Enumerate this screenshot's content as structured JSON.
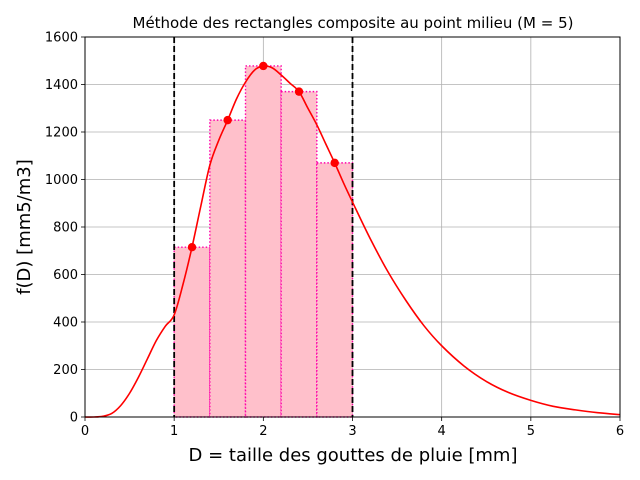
{
  "chart_data": {
    "type": "line",
    "title": "Méthode des rectangles composite au point milieu (M = 5)",
    "xlabel": "D = taille des gouttes de pluie [mm]",
    "ylabel": "f(D) [mm5/m3]",
    "xlim": [
      0,
      6
    ],
    "ylim": [
      0,
      1600
    ],
    "xticks": [
      "0",
      "1",
      "2",
      "3",
      "4",
      "5",
      "6"
    ],
    "yticks": [
      "0",
      "200",
      "400",
      "600",
      "800",
      "1000",
      "1200",
      "1400",
      "1600"
    ],
    "grid": true,
    "integration_bounds": [
      1,
      3
    ],
    "curve": {
      "color": "#ff0000",
      "x": [
        0,
        0.1,
        0.2,
        0.3,
        0.4,
        0.5,
        0.6,
        0.7,
        0.8,
        0.9,
        1.0,
        1.1,
        1.2,
        1.3,
        1.4,
        1.5,
        1.6,
        1.7,
        1.8,
        1.9,
        2.0,
        2.1,
        2.2,
        2.3,
        2.4,
        2.5,
        2.6,
        2.7,
        2.8,
        2.9,
        3.0,
        3.2,
        3.4,
        3.6,
        3.8,
        4.0,
        4.25,
        4.5,
        4.75,
        5.0,
        5.25,
        5.5,
        5.75,
        6.0
      ],
      "y": [
        0,
        0,
        3,
        15,
        48,
        100,
        168,
        245,
        322,
        382,
        430,
        560,
        715,
        890,
        1060,
        1165,
        1250,
        1340,
        1410,
        1460,
        1478,
        1470,
        1440,
        1405,
        1370,
        1300,
        1230,
        1150,
        1070,
        985,
        905,
        750,
        610,
        490,
        385,
        300,
        215,
        150,
        103,
        70,
        45,
        30,
        18,
        10
      ]
    },
    "rectangles": {
      "fill": "#ffc0cb",
      "edge": "#ff00aa",
      "x_left": [
        1.0,
        1.4,
        1.8,
        2.2,
        2.6
      ],
      "width": 0.4,
      "heights": [
        715,
        1250,
        1478,
        1370,
        1070
      ]
    },
    "midpoints": {
      "color": "#ff0000",
      "x": [
        1.2,
        1.6,
        2.0,
        2.4,
        2.8
      ],
      "y": [
        715,
        1250,
        1478,
        1370,
        1070
      ]
    }
  }
}
